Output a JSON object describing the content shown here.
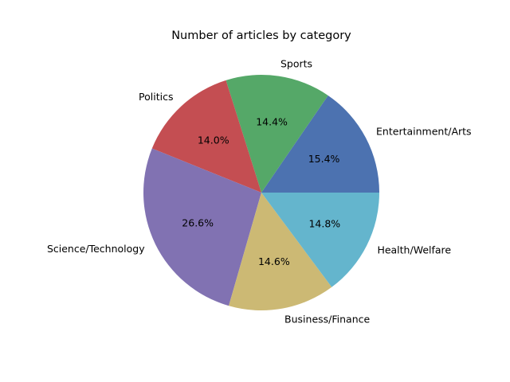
{
  "chart_data": {
    "type": "pie",
    "title": "Number of articles by category",
    "start_angle_deg": 0,
    "direction": "counterclockwise",
    "slices": [
      {
        "label": "Entertainment/Arts",
        "value": 15.4,
        "percent_label": "15.4%",
        "color": "#4c72b0"
      },
      {
        "label": "Sports",
        "value": 14.4,
        "percent_label": "14.4%",
        "color": "#55a868"
      },
      {
        "label": "Politics",
        "value": 14.0,
        "percent_label": "14.0%",
        "color": "#c44e52"
      },
      {
        "label": "Science/Technology",
        "value": 26.6,
        "percent_label": "26.6%",
        "color": "#8172b2"
      },
      {
        "label": "Business/Finance",
        "value": 14.6,
        "percent_label": "14.6%",
        "color": "#ccb974"
      },
      {
        "label": "Health/Welfare",
        "value": 14.8,
        "percent_label": "14.8%",
        "color": "#64b5cd"
      }
    ]
  }
}
